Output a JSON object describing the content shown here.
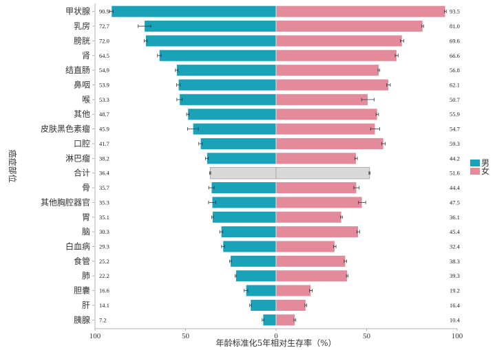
{
  "chart_data": {
    "type": "bar",
    "orientation": "horizontal-diverging",
    "xlabel": "年龄标准化5年相对生存率（%）",
    "ylabel": "癌症部位",
    "xlim": [
      -100,
      100
    ],
    "xticks": [
      {
        "value": -100,
        "label": "100"
      },
      {
        "value": -50,
        "label": "50"
      },
      {
        "value": 0,
        "label": "0"
      },
      {
        "value": 50,
        "label": "50"
      },
      {
        "value": 100,
        "label": "100"
      }
    ],
    "categories": [
      "甲状腺",
      "乳房",
      "膀胱",
      "肾",
      "结直肠",
      "鼻咽",
      "喉",
      "其他",
      "皮肤黑色素瘤",
      "口腔",
      "淋巴瘤",
      "合计",
      "骨",
      "其他胸腔器官",
      "胃",
      "脑",
      "白血病",
      "食管",
      "肺",
      "胆囊",
      "肝",
      "胰腺"
    ],
    "highlight_category": "合计",
    "highlight_color": "#d9d9d9",
    "legend": {
      "position": "right",
      "entries": [
        {
          "label": "男",
          "color": "#1aa3b8"
        },
        {
          "label": "女",
          "color": "#e38b9b"
        }
      ]
    },
    "series": [
      {
        "name": "男",
        "color": "#1aa3b8",
        "side": "left",
        "values": [
          90.9,
          72.7,
          72.0,
          64.5,
          54.9,
          53.9,
          53.3,
          48.7,
          45.9,
          41.7,
          38.2,
          36.4,
          35.7,
          35.3,
          35.1,
          30.3,
          29.3,
          25.2,
          22.2,
          16.6,
          14.1,
          7.2
        ],
        "labels": [
          "90.9",
          "72.7",
          "72.0",
          "64.5",
          "54.9",
          "53.9",
          "53.3",
          "48.7",
          "45.9",
          "41.7",
          "38.2",
          "36.4",
          "35.7",
          "35.3",
          "35.1",
          "30.3",
          "29.3",
          "25.2",
          "22.2",
          "16.6",
          "14.1",
          "7.2"
        ],
        "error": [
          1.0,
          3.5,
          0.8,
          1.0,
          0.7,
          1.0,
          1.5,
          0.7,
          3.0,
          1.0,
          0.8,
          0.3,
          1.5,
          2.0,
          0.5,
          0.8,
          0.8,
          0.5,
          0.4,
          1.0,
          0.5,
          0.5
        ]
      },
      {
        "name": "女",
        "color": "#e38b9b",
        "side": "right",
        "values": [
          93.5,
          81.0,
          69.6,
          66.6,
          56.8,
          62.1,
          50.7,
          55.9,
          54.7,
          59.3,
          44.2,
          51.6,
          44.4,
          47.5,
          36.1,
          45.4,
          32.4,
          38.3,
          39.3,
          19.2,
          16.4,
          10.4
        ],
        "labels": [
          "93.5",
          "81.0",
          "69.6",
          "66.6",
          "56.8",
          "62.1",
          "50.7",
          "55.9",
          "54.7",
          "59.3",
          "44.2",
          "51.6",
          "44.4",
          "47.5",
          "36.1",
          "45.4",
          "32.4",
          "38.3",
          "39.3",
          "19.2",
          "16.4",
          "10.4"
        ],
        "error": [
          0.5,
          0.5,
          1.0,
          0.8,
          0.5,
          1.0,
          3.5,
          0.7,
          2.5,
          1.0,
          0.7,
          0.3,
          1.5,
          2.0,
          0.5,
          0.8,
          0.7,
          0.7,
          0.5,
          0.8,
          0.5,
          0.5
        ]
      }
    ]
  }
}
